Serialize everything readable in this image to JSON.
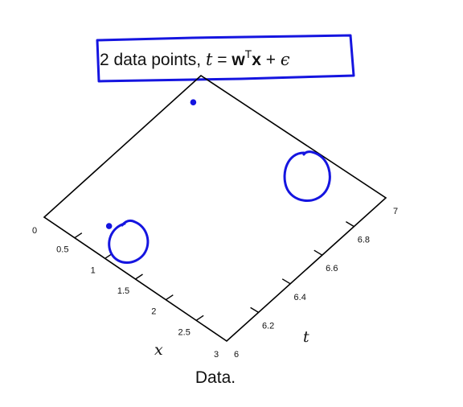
{
  "title": {
    "prefix": "2 data points, ",
    "t": "t",
    "eq": " = ",
    "w": "w",
    "sup": "T",
    "x": "x",
    "plus": " + ",
    "eps": "ϵ"
  },
  "caption": "Data.",
  "annotation_color": "#1515e0",
  "chart_data": {
    "type": "scatter",
    "xlabel": "x",
    "ylabel": "t",
    "xlim": [
      0,
      3
    ],
    "ylim": [
      6,
      7
    ],
    "x_ticks": [
      "0",
      "0.5",
      "1",
      "1.5",
      "2",
      "2.5",
      "3"
    ],
    "y_ticks": [
      "6",
      "6.2",
      "6.4",
      "6.6",
      "6.8",
      "7"
    ],
    "points": [
      {
        "x": 0.7,
        "y": 6.14
      },
      {
        "x": 0.2,
        "y": 6.86
      }
    ],
    "grid": false
  }
}
